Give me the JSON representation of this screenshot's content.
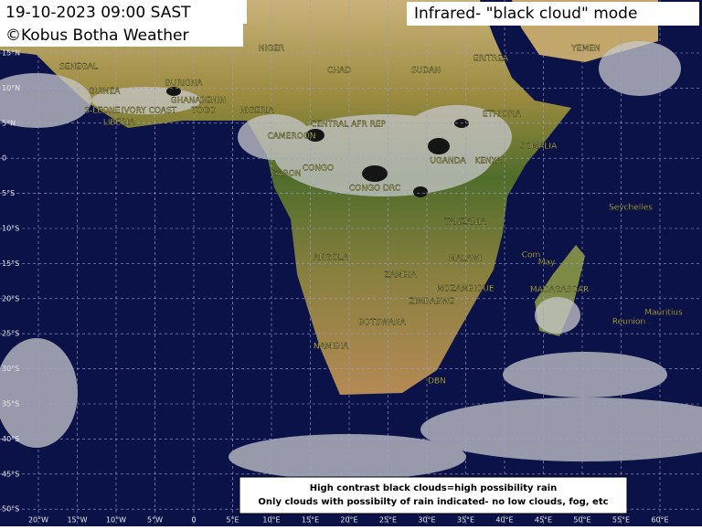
{
  "header": {
    "date_time": "19-10-2023 09:00 SAST",
    "credit": "©Kobus Botha Weather",
    "mode": "Infrared- \"black cloud\" mode"
  },
  "legend": {
    "lines": [
      "High contrast black clouds=high possibility rain",
      "Only clouds with possibilty of rain indicated- no low clouds, fog, etc"
    ]
  },
  "places": [
    "NIGER",
    "CHAD",
    "SUDAN",
    "ERITREA",
    "YEMEN",
    "SENEGAL",
    "GUINEA",
    "BURKINA",
    "GHANA",
    "BENIN",
    "NIGERIA",
    "S-LEONE",
    "IVORY COAST",
    "TOGO",
    "LIBERIA",
    "CENTRAL AFR REP",
    "ETHIOPIA",
    "CAMEROON",
    "SOMALIA",
    "UGANDA",
    "KENYA",
    "CONGO",
    "GABON",
    "CONGO DRC",
    "Seychelles",
    "TANZANIA",
    "MALAWI",
    "ANGOLA",
    "Com",
    "May",
    "ZAMBIA",
    "MOZAMBIQUE",
    "MADAGASCAR",
    "ZIMBABWE",
    "Mauritius",
    "Reunion",
    "BOTSWANA",
    "NAMIBIA",
    "DBN"
  ],
  "lat_labels": [
    "15°N",
    "10°N",
    "5°N",
    "0",
    "5°S",
    "10°S",
    "15°S",
    "20°S",
    "25°S",
    "30°S",
    "35°S",
    "40°S",
    "45°S",
    "50°S"
  ],
  "lon_labels": [
    "20°W",
    "15°W",
    "10°W",
    "5°W",
    "0",
    "5°E",
    "10°E",
    "15°E",
    "20°E",
    "25°E",
    "30°E",
    "35°E",
    "40°E",
    "45°E",
    "50°E",
    "55°E",
    "60°E"
  ]
}
